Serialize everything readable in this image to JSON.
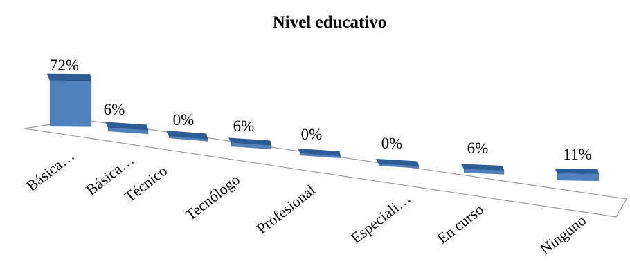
{
  "chart_data": {
    "type": "bar",
    "title": "Nivel educativo",
    "categories": [
      "Básica…",
      "Básica…",
      "Técnico",
      "Tecnólogo",
      "Profesional",
      "Especiali…",
      "En curso",
      "Ninguno"
    ],
    "values": [
      72,
      6,
      0,
      6,
      0,
      0,
      6,
      11
    ],
    "data_labels": [
      "72%",
      "6%",
      "0%",
      "6%",
      "0%",
      "0%",
      "6%",
      "11%"
    ],
    "value_unit": "%",
    "ylim": [
      0,
      100
    ],
    "legend": "none",
    "grid": false,
    "style": "3d-column",
    "colors": {
      "front": "#4f81bd",
      "side": "#2f5a8c",
      "top": "#2c5d96",
      "floor_stroke": "#9a9a9a"
    }
  }
}
